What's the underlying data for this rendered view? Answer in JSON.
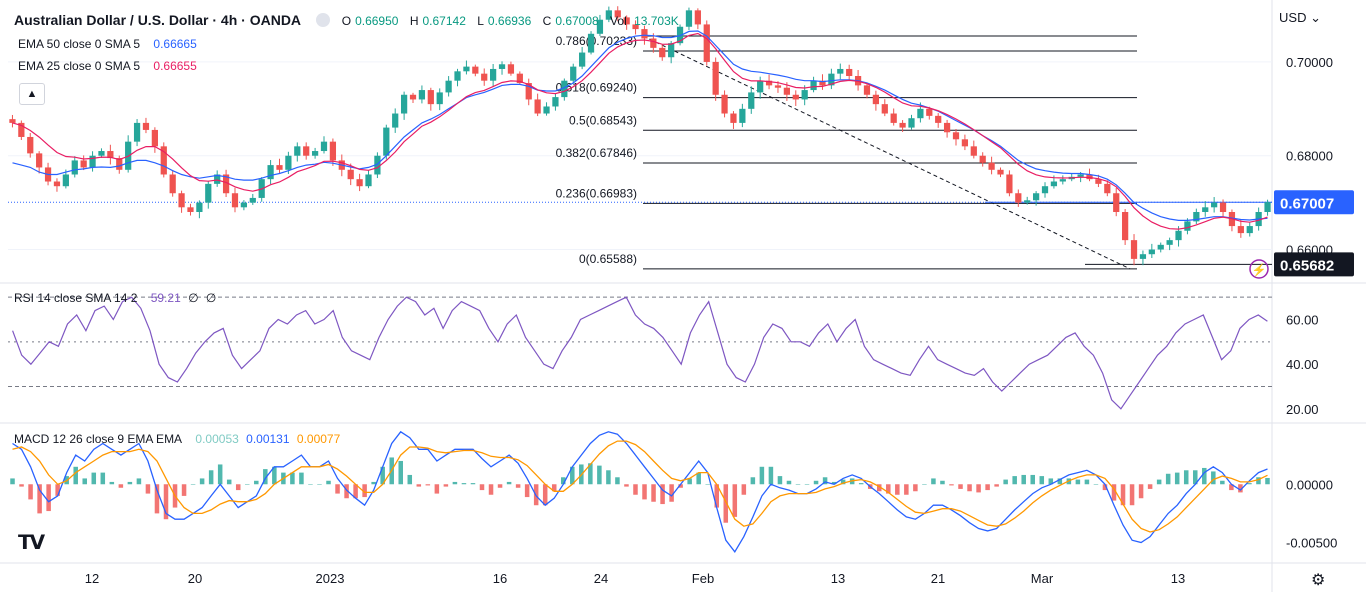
{
  "header": {
    "symbol": "Australian Dollar / U.S. Dollar · 4h · OANDA",
    "ohlc": [
      {
        "k": "O",
        "v": "0.66950"
      },
      {
        "k": "H",
        "v": "0.67142"
      },
      {
        "k": "L",
        "v": "0.66936"
      },
      {
        "k": "C",
        "v": "0.67008"
      }
    ],
    "vol_label": "Vol",
    "vol_value": "13.703K",
    "currency": "USD",
    "collapse_icon": "chevron-up-icon"
  },
  "indicators": {
    "ema50": {
      "label": "EMA 50 close 0 SMA 5",
      "value": "0.66665",
      "color": "#2962ff"
    },
    "ema25": {
      "label": "EMA 25 close 0 SMA 5",
      "value": "0.66655",
      "color": "#e91e63"
    },
    "rsi": {
      "label": "RSI 14 close SMA 14 2",
      "value": "59.21",
      "extra1": "∅",
      "extra2": "∅",
      "color": "#7e57c2"
    },
    "macd": {
      "label": "MACD 12 26 close 9 EMA EMA",
      "hist": "0.00053",
      "macd": "0.00131",
      "signal": "0.00077",
      "hist_color": "#26a69a",
      "macd_color": "#2962ff",
      "signal_color": "#ff9800"
    }
  },
  "colors": {
    "up": "#26a69a",
    "down": "#ef5350",
    "grid": "#f0f3fa",
    "text": "#131722",
    "axis_text": "#131722"
  },
  "chart_data": {
    "type": "candlestick",
    "price_axis": {
      "ylim": [
        0.6535,
        0.7115
      ],
      "ticks": [
        "0.70000",
        "0.68000",
        "0.66000"
      ],
      "tick_values": [
        0.7,
        0.68,
        0.66
      ]
    },
    "time_labels": [
      "12",
      "20",
      "2023",
      "16",
      "24",
      "Feb",
      "13",
      "21",
      "Mar",
      "13"
    ],
    "current_price": {
      "label": "0.67007",
      "value": 0.67007,
      "color": "#2962ff"
    },
    "low_marker": {
      "label": "0.65682",
      "value": 0.65682
    },
    "fibonacci": [
      {
        "label": "0.786(0.70233)",
        "value": 0.70233
      },
      {
        "label": "0.618(0.69240)",
        "value": 0.6924
      },
      {
        "label": "0.5(0.68543)",
        "value": 0.68543
      },
      {
        "label": "0.382(0.67846)",
        "value": 0.67846
      },
      {
        "label": "0.236(0.66983)",
        "value": 0.66983
      },
      {
        "label": "0(0.65588)",
        "value": 0.65588
      }
    ],
    "fib_top": 0.7147,
    "close_path": [
      0.687,
      0.684,
      0.6805,
      0.6775,
      0.6745,
      0.6735,
      0.676,
      0.679,
      0.6775,
      0.68,
      0.681,
      0.6795,
      0.677,
      0.683,
      0.687,
      0.6855,
      0.682,
      0.676,
      0.672,
      0.669,
      0.668,
      0.67,
      0.674,
      0.676,
      0.672,
      0.669,
      0.67,
      0.671,
      0.675,
      0.678,
      0.677,
      0.68,
      0.682,
      0.68,
      0.681,
      0.683,
      0.679,
      0.677,
      0.675,
      0.6735,
      0.676,
      0.68,
      0.686,
      0.689,
      0.693,
      0.692,
      0.694,
      0.691,
      0.6935,
      0.696,
      0.698,
      0.699,
      0.6975,
      0.696,
      0.6985,
      0.6995,
      0.6975,
      0.6955,
      0.692,
      0.689,
      0.6905,
      0.6925,
      0.696,
      0.699,
      0.702,
      0.706,
      0.709,
      0.711,
      0.7095,
      0.708,
      0.707,
      0.705,
      0.703,
      0.701,
      0.704,
      0.7075,
      0.711,
      0.708,
      0.7,
      0.693,
      0.689,
      0.687,
      0.69,
      0.6935,
      0.696,
      0.695,
      0.6945,
      0.693,
      0.692,
      0.694,
      0.696,
      0.695,
      0.6975,
      0.6985,
      0.697,
      0.695,
      0.693,
      0.691,
      0.689,
      0.687,
      0.686,
      0.688,
      0.69,
      0.6885,
      0.687,
      0.685,
      0.6835,
      0.682,
      0.68,
      0.6785,
      0.677,
      0.676,
      0.672,
      0.67,
      0.6705,
      0.672,
      0.6735,
      0.6745,
      0.675,
      0.6755,
      0.676,
      0.675,
      0.674,
      0.672,
      0.668,
      0.662,
      0.658,
      0.659,
      0.66,
      0.661,
      0.662,
      0.664,
      0.666,
      0.668,
      0.669,
      0.67,
      0.668,
      0.665,
      0.6635,
      0.665,
      0.668,
      0.6701
    ],
    "ema_slow_path": [
      0.6785,
      0.678,
      0.6775,
      0.6765,
      0.676,
      0.676,
      0.6765,
      0.677,
      0.6772,
      0.6775,
      0.6776,
      0.6775,
      0.6778,
      0.6785,
      0.679,
      0.679,
      0.6785,
      0.6778,
      0.6768,
      0.676,
      0.6755,
      0.6752,
      0.6755,
      0.6758,
      0.6755,
      0.675,
      0.6748,
      0.6748,
      0.6752,
      0.6758,
      0.6762,
      0.6768,
      0.6775,
      0.678,
      0.6782,
      0.6786,
      0.6784,
      0.678,
      0.6776,
      0.6772,
      0.6775,
      0.6782,
      0.68,
      0.682,
      0.684,
      0.6855,
      0.687,
      0.6878,
      0.6888,
      0.69,
      0.6912,
      0.6924,
      0.693,
      0.6935,
      0.6942,
      0.695,
      0.6952,
      0.6952,
      0.6948,
      0.694,
      0.6938,
      0.6938,
      0.6945,
      0.6955,
      0.697,
      0.699,
      0.701,
      0.703,
      0.7042,
      0.705,
      0.7055,
      0.7057,
      0.7056,
      0.7052,
      0.7052,
      0.7056,
      0.7065,
      0.7066,
      0.7055,
      0.7035,
      0.7015,
      0.6995,
      0.6985,
      0.698,
      0.6978,
      0.6975,
      0.6972,
      0.6968,
      0.6963,
      0.696,
      0.696,
      0.6958,
      0.696,
      0.6962,
      0.6962,
      0.696,
      0.6955,
      0.6948,
      0.694,
      0.693,
      0.692,
      0.6912,
      0.6908,
      0.6902,
      0.6895,
      0.6885,
      0.6875,
      0.6865,
      0.6855,
      0.6843,
      0.6832,
      0.682,
      0.6805,
      0.679,
      0.678,
      0.6772,
      0.6768,
      0.6765,
      0.6763,
      0.6762,
      0.6762,
      0.676,
      0.6757,
      0.675,
      0.6738,
      0.672,
      0.67,
      0.6688,
      0.6678,
      0.667,
      0.6665,
      0.6662,
      0.6662,
      0.6664,
      0.6667,
      0.667,
      0.667,
      0.6667,
      0.6664,
      0.6663,
      0.6665,
      0.66665
    ],
    "rsi": {
      "ticks": [
        "60.00",
        "40.00",
        "20.00"
      ],
      "tick_values": [
        60,
        40,
        20
      ],
      "bands": [
        70,
        50,
        30
      ],
      "ylim": [
        15,
        75
      ],
      "values": [
        55,
        44,
        40,
        45,
        50,
        48,
        58,
        62,
        55,
        64,
        66,
        60,
        68,
        70,
        65,
        55,
        40,
        34,
        32,
        38,
        45,
        50,
        54,
        56,
        44,
        38,
        42,
        46,
        56,
        60,
        58,
        62,
        64,
        58,
        60,
        64,
        52,
        46,
        44,
        42,
        52,
        60,
        66,
        70,
        68,
        62,
        65,
        56,
        64,
        68,
        66,
        64,
        56,
        50,
        58,
        62,
        52,
        46,
        40,
        38,
        46,
        52,
        60,
        62,
        64,
        66,
        68,
        70,
        62,
        58,
        56,
        52,
        46,
        40,
        54,
        62,
        68,
        54,
        40,
        34,
        32,
        40,
        52,
        58,
        56,
        50,
        50,
        48,
        54,
        58,
        50,
        56,
        60,
        48,
        42,
        40,
        38,
        36,
        35,
        42,
        48,
        42,
        40,
        38,
        36,
        35,
        38,
        32,
        28,
        32,
        36,
        40,
        42,
        44,
        48,
        52,
        54,
        48,
        44,
        36,
        24,
        20,
        26,
        32,
        38,
        44,
        48,
        54,
        58,
        60,
        62,
        52,
        42,
        46,
        56,
        60,
        62,
        59.21
      ]
    },
    "macd": {
      "ticks": [
        "0.00000",
        "-0.00500"
      ],
      "tick_values": [
        0,
        -0.005
      ],
      "ylim": [
        -0.0065,
        0.005
      ],
      "macd": [
        0.0035,
        0.003,
        0.0015,
        -0.0005,
        -0.0015,
        -0.001,
        0.001,
        0.0025,
        0.002,
        0.003,
        0.0035,
        0.003,
        0.0025,
        0.003,
        0.0035,
        0.002,
        -0.0005,
        -0.0025,
        -0.003,
        -0.003,
        -0.0025,
        -0.002,
        -0.001,
        0.0,
        -0.001,
        -0.002,
        -0.0015,
        -0.001,
        0.0005,
        0.0015,
        0.0015,
        0.002,
        0.0025,
        0.0015,
        0.0015,
        0.002,
        0.0005,
        -0.0005,
        -0.0012,
        -0.0018,
        -0.0005,
        0.0015,
        0.0035,
        0.0045,
        0.004,
        0.003,
        0.003,
        0.002,
        0.0025,
        0.003,
        0.003,
        0.003,
        0.0022,
        0.0015,
        0.002,
        0.0025,
        0.0018,
        0.0005,
        -0.001,
        -0.0018,
        -0.0012,
        0.0,
        0.0015,
        0.0025,
        0.0035,
        0.0042,
        0.0045,
        0.0043,
        0.0035,
        0.0025,
        0.0015,
        0.0005,
        -0.0005,
        -0.001,
        0.0,
        0.001,
        0.002,
        0.001,
        -0.002,
        -0.0048,
        -0.0058,
        -0.0045,
        -0.0028,
        -0.001,
        0.0,
        -0.0003,
        -0.0005,
        -0.0008,
        -0.0008,
        -0.0004,
        0.0002,
        0.0,
        0.0005,
        0.0008,
        0.0005,
        -0.0002,
        -0.0008,
        -0.0015,
        -0.0022,
        -0.0028,
        -0.003,
        -0.0025,
        -0.0018,
        -0.0018,
        -0.0022,
        -0.0027,
        -0.0033,
        -0.0038,
        -0.004,
        -0.0038,
        -0.003,
        -0.0022,
        -0.0015,
        -0.0008,
        -0.0003,
        0.0,
        0.0004,
        0.0008,
        0.001,
        0.0012,
        0.0008,
        0.0,
        -0.0018,
        -0.0035,
        -0.0048,
        -0.005,
        -0.0045,
        -0.0035,
        -0.0025,
        -0.0018,
        -0.0008,
        0.0,
        0.001,
        0.0015,
        0.001,
        0.0,
        -0.0005,
        0.0003,
        0.001,
        0.00131
      ],
      "signal": [
        0.003,
        0.0032,
        0.0028,
        0.002,
        0.0008,
        0.0,
        0.0003,
        0.001,
        0.0015,
        0.002,
        0.0025,
        0.0028,
        0.0028,
        0.0028,
        0.003,
        0.0028,
        0.002,
        0.0005,
        -0.001,
        -0.002,
        -0.0025,
        -0.0025,
        -0.0022,
        -0.0017,
        -0.0014,
        -0.0015,
        -0.0015,
        -0.0013,
        -0.0008,
        0.0,
        0.0005,
        0.001,
        0.0015,
        0.0015,
        0.0015,
        0.0017,
        0.0013,
        0.0007,
        0.0,
        -0.0007,
        -0.0007,
        0.0,
        0.0012,
        0.0025,
        0.0032,
        0.0032,
        0.0031,
        0.0028,
        0.0027,
        0.0028,
        0.0029,
        0.0029,
        0.0027,
        0.0024,
        0.0023,
        0.0023,
        0.0021,
        0.0016,
        0.0008,
        0.0,
        -0.0006,
        -0.0006,
        0.0,
        0.0008,
        0.0017,
        0.0026,
        0.0033,
        0.0037,
        0.0037,
        0.0034,
        0.0028,
        0.002,
        0.0012,
        0.0005,
        0.0003,
        0.0005,
        0.001,
        0.001,
        0.0,
        -0.0015,
        -0.003,
        -0.0036,
        -0.0034,
        -0.0025,
        -0.0015,
        -0.001,
        -0.0008,
        -0.0008,
        -0.0008,
        -0.0007,
        -0.0004,
        -0.0002,
        0.0001,
        0.0003,
        0.0004,
        0.0002,
        -0.0002,
        -0.0007,
        -0.0013,
        -0.0019,
        -0.0024,
        -0.0025,
        -0.0023,
        -0.0021,
        -0.0021,
        -0.0023,
        -0.0027,
        -0.0031,
        -0.0035,
        -0.0036,
        -0.0034,
        -0.0029,
        -0.0023,
        -0.0016,
        -0.001,
        -0.0005,
        -0.0001,
        0.0003,
        0.0006,
        0.0008,
        0.0008,
        0.0005,
        -0.0004,
        -0.0017,
        -0.003,
        -0.0038,
        -0.0041,
        -0.0039,
        -0.0034,
        -0.0028,
        -0.002,
        -0.0012,
        -0.0004,
        0.0004,
        0.0007,
        0.0005,
        0.0002,
        0.0002,
        0.0004,
        0.00077
      ]
    }
  }
}
